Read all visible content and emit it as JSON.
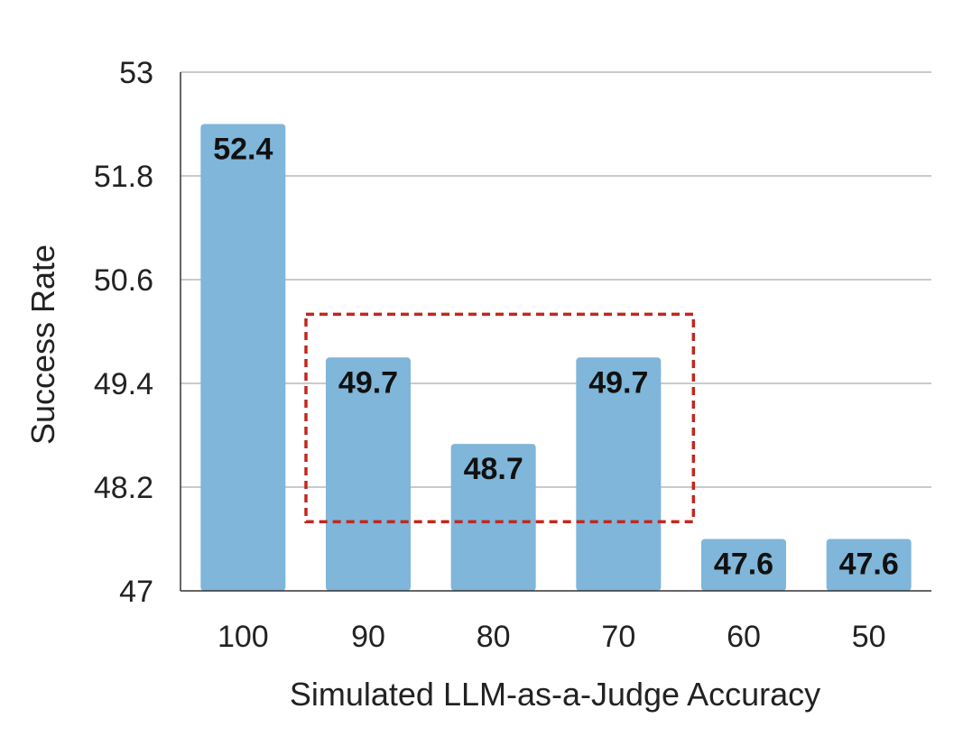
{
  "chart_data": {
    "type": "bar",
    "title": "",
    "xlabel": "Simulated LLM-as-a-Judge Accuracy",
    "ylabel": "Success Rate",
    "categories": [
      "100",
      "90",
      "80",
      "70",
      "60",
      "50"
    ],
    "values": [
      52.4,
      49.7,
      48.7,
      49.7,
      47.6,
      47.6
    ],
    "data_labels": [
      "52.4",
      "49.7",
      "48.7",
      "49.7",
      "47.6",
      "47.6"
    ],
    "ylim": [
      47,
      53
    ],
    "yticks": [
      "47",
      "48.2",
      "49.4",
      "50.6",
      "51.8",
      "53"
    ],
    "grid": "horizontal",
    "legend": "none",
    "highlight_box": {
      "categories": [
        "90",
        "70"
      ],
      "y_range": [
        47.8,
        50.2
      ],
      "style": "dashed"
    },
    "colors": {
      "bar": "#7fb6da",
      "grid": "#b8b8b8",
      "axis": "#333333",
      "highlight_box": "#c0281f"
    }
  }
}
